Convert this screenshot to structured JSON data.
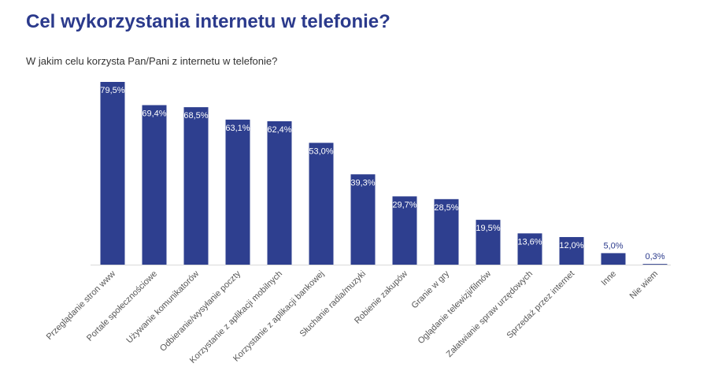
{
  "chart_data": {
    "type": "bar",
    "title": "Cel wykorzystania internetu w telefonie?",
    "subtitle": "W jakim celu korzysta Pan/Pani z internetu w telefonie?",
    "categories": [
      "Przeglądanie stron www",
      "Portale społecznościowe",
      "Używanie komunikatorów",
      "Odbieranie/wysyłanie poczty",
      "Korzystanie z aplikacji mobilnych",
      "Korzystanie z aplikacji bankowej",
      "Słuchanie radia/muzyki",
      "Robienie zakupów",
      "Granie w gry",
      "Oglądanie telewizji/filmów",
      "Załatwianie spraw urzędowych",
      "Sprzedaż przez internet",
      "Inne",
      "Nie wiem"
    ],
    "values": [
      79.5,
      69.4,
      68.5,
      63.1,
      62.4,
      53.0,
      39.3,
      29.7,
      28.5,
      19.5,
      13.6,
      12.0,
      5.0,
      0.3
    ],
    "data_labels": [
      "79,5%",
      "69,4%",
      "68,5%",
      "63,1%",
      "62,4%",
      "53,0%",
      "39,3%",
      "29,7%",
      "28,5%",
      "19,5%",
      "13,6%",
      "12,0%",
      "5,0%",
      "0,3%"
    ],
    "xlabel": "",
    "ylabel": "",
    "ylim": [
      0,
      80
    ],
    "grid": false,
    "legend": "none",
    "colors": {
      "bar": "#2e3f8f",
      "title": "#2b3a8c",
      "label_inside": "#ffffff",
      "label_outside": "#2b3a8c"
    }
  }
}
